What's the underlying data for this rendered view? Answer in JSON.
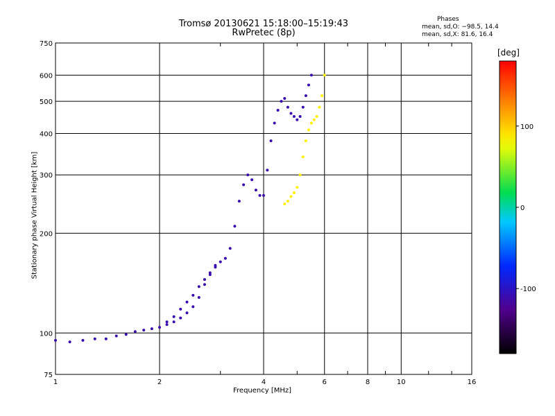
{
  "header": {
    "title_line1": "Tromsø 20130621 15:18:00–15:19:43",
    "title_line2": "RwPretec (8p)"
  },
  "stats": {
    "title": "Phases",
    "o_mode": "mean, sd,O: −98.5, 14.4",
    "x_mode": "mean, sd,X: 81.6, 16.4"
  },
  "colors": {
    "blue_trace": "#1a3cff",
    "light_blue_trace": "#2a8cff",
    "yellow_trace": "#e6ff1a",
    "background": "#ffffff",
    "grid": "#000000"
  },
  "chart_data": {
    "type": "scatter",
    "title": "Tromsø 20130621 15:18:00–15:19:43",
    "subtitle": "RwPretec (8p)",
    "xlabel": "Frequency [MHz]",
    "ylabel": "Stationary phase Virtual Height [km]",
    "x_scale": "log",
    "y_scale": "log",
    "xlim": [
      1,
      16
    ],
    "ylim": [
      75,
      750
    ],
    "x_ticks": [
      1,
      2,
      4,
      6,
      8,
      10,
      16
    ],
    "y_ticks": [
      75,
      100,
      200,
      300,
      400,
      500,
      600,
      750
    ],
    "grid": true,
    "colorbar": {
      "label": "[deg]",
      "range": [
        -180,
        180
      ],
      "ticks": [
        100,
        0,
        -100
      ]
    },
    "series": [
      {
        "color_deg": -110,
        "x": [
          1.0,
          1.1,
          1.2,
          1.3,
          1.4,
          1.5,
          1.6,
          1.7,
          1.8,
          1.9,
          2.0,
          2.1,
          2.2,
          2.3,
          2.4,
          2.5,
          2.6,
          2.7,
          2.8,
          2.9
        ],
        "y": [
          95,
          94,
          95,
          96,
          96,
          98,
          99,
          101,
          102,
          103,
          104,
          106,
          108,
          111,
          115,
          120,
          128,
          140,
          150,
          160
        ]
      },
      {
        "color_deg": -110,
        "x": [
          2.1,
          2.2,
          2.3,
          2.4,
          2.5,
          2.6,
          2.7,
          2.8,
          2.9,
          3.0,
          3.1
        ],
        "y": [
          108,
          112,
          118,
          124,
          130,
          138,
          145,
          152,
          158,
          164,
          168
        ]
      },
      {
        "color_deg": -110,
        "x": [
          3.2,
          3.3,
          3.4,
          3.5,
          3.6,
          3.7,
          3.8,
          3.9,
          4.0,
          4.1,
          4.2,
          4.3,
          4.4,
          4.5,
          4.6,
          4.7,
          4.8,
          4.9,
          5.0,
          5.1,
          5.2,
          5.3,
          5.4,
          5.5
        ],
        "y": [
          180,
          210,
          250,
          280,
          300,
          290,
          270,
          260,
          260,
          310,
          380,
          430,
          470,
          500,
          510,
          480,
          460,
          450,
          440,
          450,
          480,
          520,
          560,
          600
        ]
      },
      {
        "color_deg": 85,
        "x": [
          4.6,
          4.7,
          4.8,
          4.9,
          5.0,
          5.1,
          5.2,
          5.3,
          5.4,
          5.5,
          5.6,
          5.7,
          5.8,
          5.9,
          6.0
        ],
        "y": [
          245,
          250,
          258,
          265,
          275,
          300,
          340,
          380,
          410,
          430,
          440,
          450,
          480,
          520,
          600
        ]
      }
    ]
  }
}
